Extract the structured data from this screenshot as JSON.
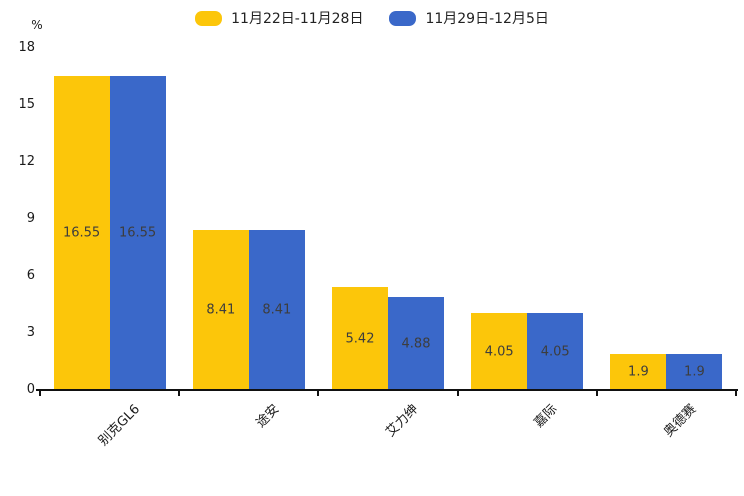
{
  "legend": {
    "items": [
      {
        "label": "11月22日-11月28日",
        "color": "#FCC60A"
      },
      {
        "label": "11月29日-12月5日",
        "color": "#3A68C9"
      }
    ]
  },
  "chart_data": {
    "type": "bar",
    "title": "",
    "unit_label": "%",
    "categories": [
      "别克GL6",
      "途安",
      "艾力绅",
      "嘉际",
      "奥德赛"
    ],
    "series": [
      {
        "name": "11月22日-11月28日",
        "color": "#FCC60A",
        "values": [
          16.55,
          8.41,
          5.42,
          4.05,
          1.9
        ]
      },
      {
        "name": "11月29日-12月5日",
        "color": "#3A68C9",
        "values": [
          16.55,
          8.41,
          4.88,
          4.05,
          1.9
        ]
      }
    ],
    "ylim": [
      0,
      18
    ],
    "yticks": [
      0,
      3,
      6,
      9,
      12,
      15,
      18
    ],
    "grid": false,
    "legend_position": "top-center",
    "bar_value_labels": true,
    "category_label_rotation_deg": 45
  }
}
